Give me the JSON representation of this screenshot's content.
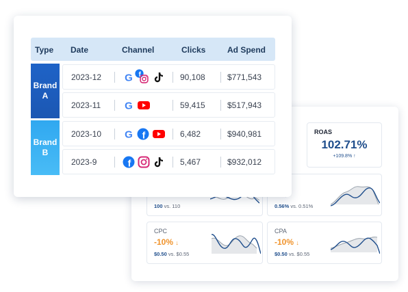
{
  "table": {
    "headers": [
      "Type",
      "Date",
      "Channel",
      "Clicks",
      "Ad Spend"
    ],
    "brands": [
      {
        "line1": "Brand",
        "line2": "A"
      },
      {
        "line1": "Brand",
        "line2": "B"
      }
    ],
    "rows": [
      {
        "date": "2023-12",
        "channels": [
          "google",
          "facebook",
          "instagram",
          "tiktok"
        ],
        "clicks": "90,108",
        "spend": "$771,543"
      },
      {
        "date": "2023-11",
        "channels": [
          "google",
          "youtube"
        ],
        "clicks": "59,415",
        "spend": "$517,943"
      },
      {
        "date": "2023-10",
        "channels": [
          "google",
          "facebook",
          "youtube"
        ],
        "clicks": "6,482",
        "spend": "$940,981"
      },
      {
        "date": "2023-9",
        "channels": [
          "facebook",
          "instagram",
          "tiktok"
        ],
        "clicks": "5,467",
        "spend": "$932,012"
      }
    ]
  },
  "dashboard": {
    "roas": {
      "title": "ROAS",
      "value": "102.71%",
      "change": "+109.8%"
    },
    "clicks_card": {
      "compare_value": "100",
      "compare_text": "vs. 110"
    },
    "ctr_card": {
      "pct": "%",
      "compare_value": "0.56%",
      "compare_text": "vs. 0.51%"
    },
    "cpc": {
      "title": "CPC",
      "pct": "-10%",
      "compare_value": "$0.50",
      "compare_text": "vs. $0.55"
    },
    "cpa": {
      "title": "CPA",
      "pct": "-10%",
      "compare_value": "$0.50",
      "compare_text": "vs. $0.55"
    }
  },
  "colors": {
    "brand_a": "#1e63c7",
    "brand_b": "#3db2f3",
    "header_bg": "#d6e7f7",
    "accent_blue": "#1f4e8c",
    "negative_orange": "#f0932b"
  }
}
